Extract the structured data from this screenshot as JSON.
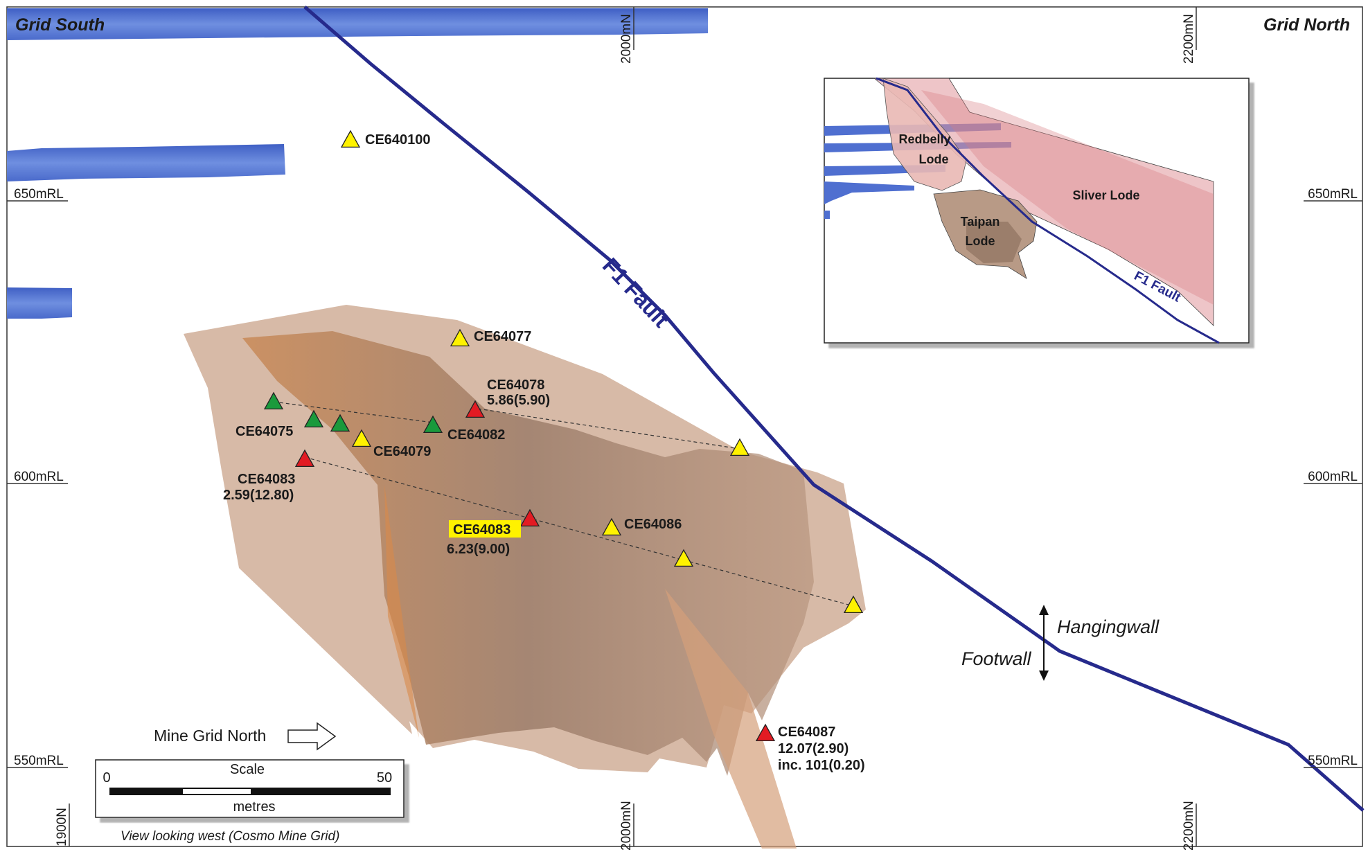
{
  "corners": {
    "grid_south": "Grid South",
    "grid_north": "Grid North"
  },
  "northing_ticks": {
    "top": [
      "2000mN",
      "2200mN"
    ],
    "bottom": [
      "1900N",
      "2000mN",
      "2200mN"
    ]
  },
  "rl_ticks": {
    "left": [
      "650mRL",
      "600mRL",
      "550mRL"
    ],
    "right": [
      "650mRL",
      "600mRL",
      "550mRL"
    ]
  },
  "fault": {
    "label": "F1 Fault",
    "color": "#262a8c"
  },
  "drill_holes": [
    {
      "id": "ce640100",
      "label": "CE640100",
      "result": "",
      "status": "yellow"
    },
    {
      "id": "ce64077",
      "label": "CE64077",
      "result": "",
      "status": "yellow"
    },
    {
      "id": "ce64078",
      "label": "CE64078",
      "result": "5.86(5.90)",
      "status": "red"
    },
    {
      "id": "ce64075",
      "label": "CE64075",
      "result": "",
      "status": "green"
    },
    {
      "id": "ce64082",
      "label": "CE64082",
      "result": "",
      "status": "green"
    },
    {
      "id": "ce64079",
      "label": "CE64079",
      "result": "",
      "status": "yellow"
    },
    {
      "id": "ce64083a",
      "label": "CE64083",
      "result": "2.59(12.80)",
      "status": "red"
    },
    {
      "id": "ce64083b",
      "label": "CE64083",
      "result": "6.23(9.00)",
      "status": "red",
      "highlight": true
    },
    {
      "id": "ce64086",
      "label": "CE64086",
      "result": "",
      "status": "yellow"
    },
    {
      "id": "ce64087",
      "label": "CE64087",
      "result": "12.07(2.90)",
      "result2": "inc. 101(0.20)",
      "status": "red"
    }
  ],
  "marker_colors": {
    "red": "#e21b23",
    "green": "#1a9a3c",
    "yellow": "#fff200"
  },
  "inset": {
    "redbelly": [
      "Redbelly",
      "Lode"
    ],
    "sliver": "Sliver Lode",
    "taipan": [
      "Taipan",
      "Lode"
    ],
    "fault": "F1 Fault"
  },
  "hangingwall": "Hangingwall",
  "footwall": "Footwall",
  "mine_grid_north": "Mine Grid North",
  "scale": {
    "title": "Scale",
    "min": "0",
    "max": "50",
    "unit": "metres"
  },
  "caption": "View looking west (Cosmo Mine Grid)"
}
